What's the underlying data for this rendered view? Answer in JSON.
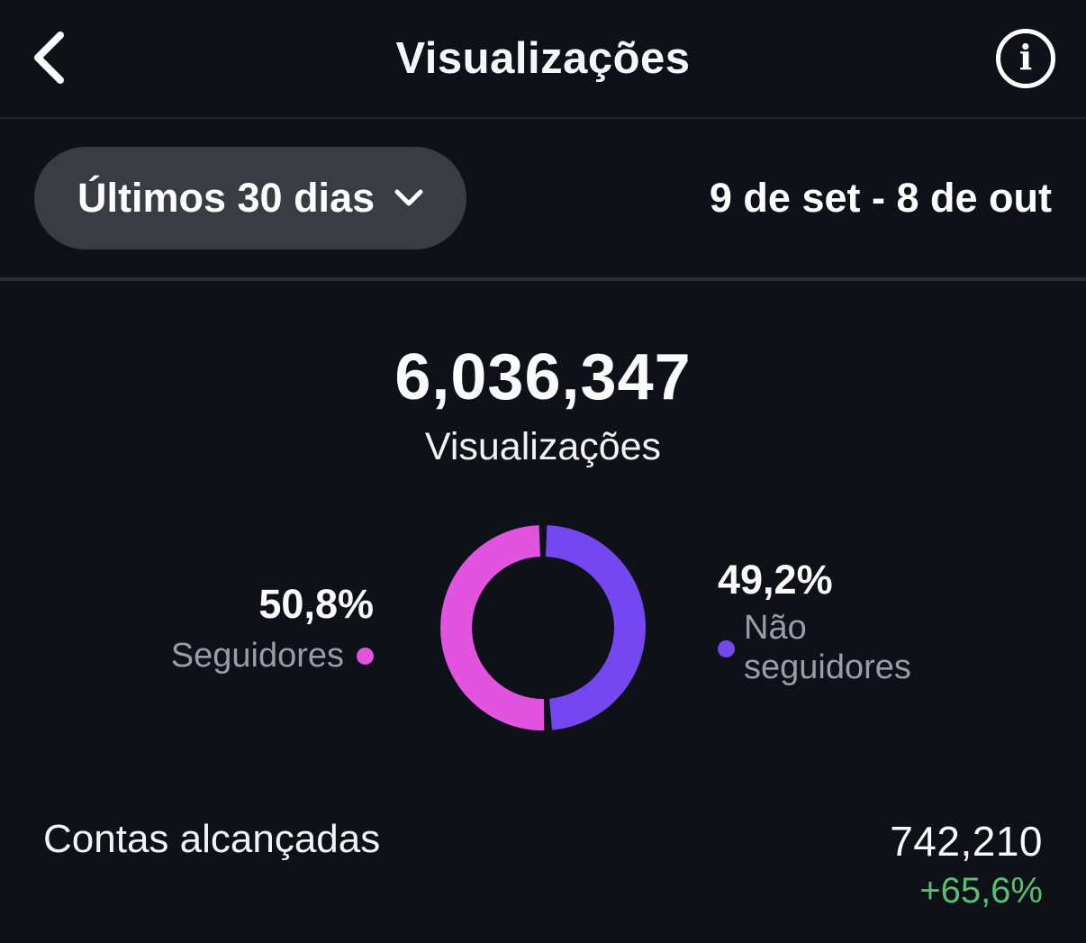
{
  "header": {
    "title": "Visualizações"
  },
  "icons": {
    "back": "chevron-left",
    "info": "i",
    "range_dropdown": "chevron-down"
  },
  "filter": {
    "range_label": "Últimos 30 dias",
    "date_range": "9 de set - 8 de out"
  },
  "summary": {
    "value": "6,036,347",
    "label": "Visualizações"
  },
  "chart_data": {
    "type": "pie",
    "donut": true,
    "start_angle_deg": 0,
    "direction": "clockwise",
    "gap_deg": 2.2,
    "segments": [
      {
        "label": "Não seguidores",
        "value": 49.2,
        "value_display": "49,2%",
        "color": "#7547f0"
      },
      {
        "label": "Seguidores",
        "value": 50.8,
        "value_display": "50,8%",
        "color": "#e253df"
      }
    ]
  },
  "footer": {
    "label": "Contas alcançadas",
    "value": "742,210",
    "delta": "+65,6%",
    "delta_color": "#58bf70"
  },
  "colors": {
    "background": "#0e1117",
    "pill_background": "#393c42",
    "muted_text": "#989da6",
    "positive_green": "#58bf70",
    "followers_pink": "#e253df",
    "non_followers_purple": "#7547f0"
  }
}
